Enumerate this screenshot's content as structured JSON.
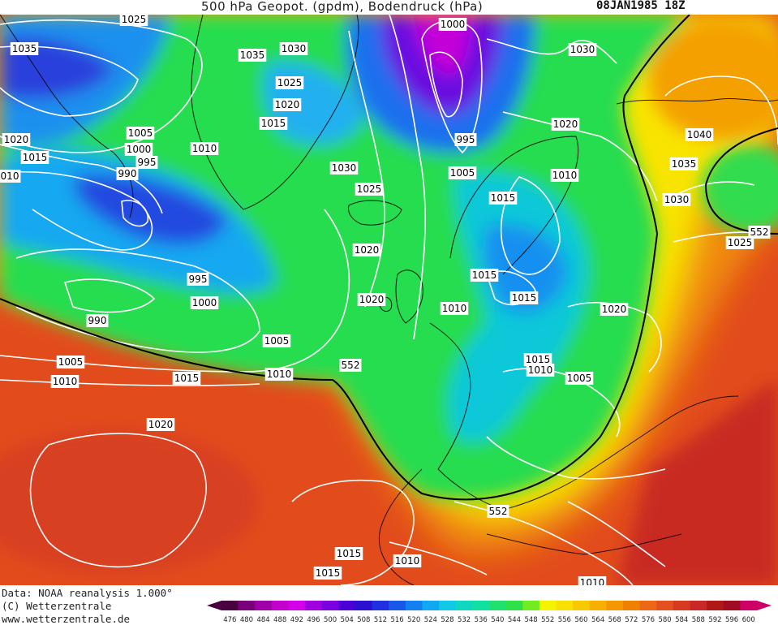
{
  "header": {
    "title": "500 hPa Geopot. (gpdm), Bodendruck (hPa)",
    "date": "08JAN1985 18Z"
  },
  "footer": {
    "line1": "Data: NOAA reanalysis 1.000°",
    "line2": "(C) Wetterzentrale",
    "line3": "www.wetterzentrale.de"
  },
  "map": {
    "pressure_labels": [
      {
        "text": "1025"
      },
      {
        "text": "1035"
      },
      {
        "text": "1035"
      },
      {
        "text": "1030"
      },
      {
        "text": "1000"
      },
      {
        "text": "1030"
      },
      {
        "text": "1025"
      },
      {
        "text": "1020"
      },
      {
        "text": "1015"
      },
      {
        "text": "1005"
      },
      {
        "text": "1000"
      },
      {
        "text": "995"
      },
      {
        "text": "990"
      },
      {
        "text": "1010"
      },
      {
        "text": "1020"
      },
      {
        "text": "1015"
      },
      {
        "text": "010"
      },
      {
        "text": "1030"
      },
      {
        "text": "995"
      },
      {
        "text": "1020"
      },
      {
        "text": "1040"
      },
      {
        "text": "1035"
      },
      {
        "text": "1005"
      },
      {
        "text": "1010"
      },
      {
        "text": "1025"
      },
      {
        "text": "1015"
      },
      {
        "text": "1030"
      },
      {
        "text": "1025"
      },
      {
        "text": "1020"
      },
      {
        "text": "995"
      },
      {
        "text": "1000"
      },
      {
        "text": "990"
      },
      {
        "text": "1015"
      },
      {
        "text": "1015"
      },
      {
        "text": "1020"
      },
      {
        "text": "1010"
      },
      {
        "text": "1020"
      },
      {
        "text": "1005"
      },
      {
        "text": "1005"
      },
      {
        "text": "1010"
      },
      {
        "text": "1015"
      },
      {
        "text": "1010"
      },
      {
        "text": "1015"
      },
      {
        "text": "1005"
      },
      {
        "text": "1010"
      },
      {
        "text": "1020"
      },
      {
        "text": "1015"
      },
      {
        "text": "1010"
      },
      {
        "text": "1015"
      },
      {
        "text": "1010"
      }
    ],
    "geopotential_labels": [
      {
        "text": "552"
      },
      {
        "text": "552"
      },
      {
        "text": "552"
      }
    ],
    "colors": {
      "contour_552": "#000000",
      "isobar": "#ffffff",
      "land_outline": "#000000"
    }
  },
  "color_scale": {
    "ticks": [
      "476",
      "480",
      "484",
      "488",
      "492",
      "496",
      "500",
      "504",
      "508",
      "512",
      "516",
      "520",
      "524",
      "528",
      "532",
      "536",
      "540",
      "544",
      "548",
      "552",
      "556",
      "560",
      "564",
      "568",
      "572",
      "576",
      "580",
      "584",
      "588",
      "592",
      "596",
      "600"
    ],
    "colors": [
      "#4a0040",
      "#7a007a",
      "#a000a8",
      "#c400cc",
      "#d400e8",
      "#a000e0",
      "#7a00e0",
      "#4c00d8",
      "#2a10d0",
      "#2030e0",
      "#1858e8",
      "#1480f0",
      "#10a8f0",
      "#10c8e8",
      "#10d8c0",
      "#10e0a0",
      "#20e070",
      "#30e048",
      "#70ec20",
      "#f4f400",
      "#f8e000",
      "#f8c800",
      "#f8b000",
      "#f49800",
      "#f08000",
      "#ec6818",
      "#e45020",
      "#d83a20",
      "#c82828",
      "#b01818",
      "#a00c20",
      "#cc0066"
    ]
  }
}
